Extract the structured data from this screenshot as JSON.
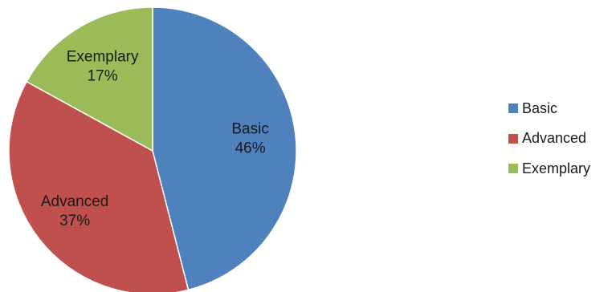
{
  "chart_data": {
    "type": "pie",
    "title": "",
    "start_angle_deg": 0,
    "direction": "clockwise",
    "legend_position": "right",
    "slices": [
      {
        "label": "Basic",
        "value": 46,
        "value_text": "46%",
        "color": "#4f81bd"
      },
      {
        "label": "Advanced",
        "value": 37,
        "value_text": "37%",
        "color": "#c0504d"
      },
      {
        "label": "Exemplary",
        "value": 17,
        "value_text": "17%",
        "color": "#9bbb59"
      }
    ]
  }
}
